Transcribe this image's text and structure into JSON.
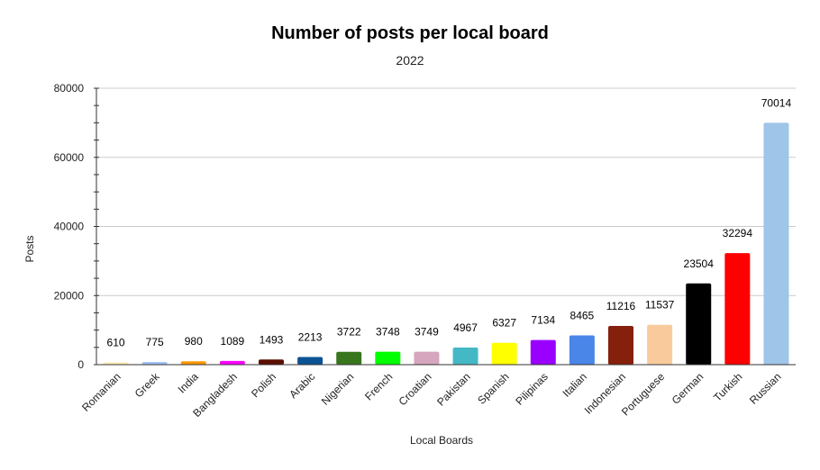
{
  "chart_data": {
    "type": "bar",
    "title": "Number of posts per local board",
    "subtitle": "2022",
    "xlabel": "Local Boards",
    "ylabel": "Posts",
    "ylim": [
      0,
      80000
    ],
    "yticks": [
      0,
      20000,
      40000,
      60000,
      80000
    ],
    "grid": true,
    "legend": "none",
    "categories": [
      "Romanian",
      "Greek",
      "India",
      "Bangladesh",
      "Polish",
      "Arabic",
      "Nigerian",
      "French",
      "Croatian",
      "Pakistan",
      "Spanish",
      "Pilipinas",
      "Italian",
      "Indonesian",
      "Portuguese",
      "German",
      "Turkish",
      "Russian"
    ],
    "values": [
      610,
      775,
      980,
      1089,
      1493,
      2213,
      3722,
      3748,
      3749,
      4967,
      6327,
      7134,
      8465,
      11216,
      11537,
      23504,
      32294,
      70014
    ],
    "colors": [
      "#fce8b2",
      "#a4c2f4",
      "#ff9900",
      "#ff00ff",
      "#5b0f00",
      "#0b5394",
      "#38761d",
      "#00ff00",
      "#d5a6bd",
      "#45b8c6",
      "#ffff00",
      "#9900ff",
      "#4a86e8",
      "#85200c",
      "#f9cb9c",
      "#000000",
      "#ff0000",
      "#9fc5e8"
    ]
  }
}
